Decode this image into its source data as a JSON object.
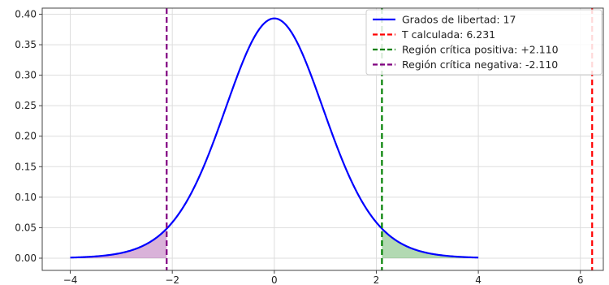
{
  "chart_data": {
    "type": "line",
    "title": "",
    "xlabel": "",
    "ylabel": "",
    "xlim": [
      -4.55,
      6.45
    ],
    "ylim": [
      -0.02,
      0.41
    ],
    "grid": true,
    "legend_position": "top-right",
    "x_ticks": [
      {
        "value": -4,
        "label": "−4"
      },
      {
        "value": -2,
        "label": "−2"
      },
      {
        "value": 0,
        "label": "0"
      },
      {
        "value": 2,
        "label": "2"
      },
      {
        "value": 4,
        "label": "4"
      },
      {
        "value": 6,
        "label": "6"
      }
    ],
    "y_ticks": [
      {
        "value": 0.0,
        "label": "0.00"
      },
      {
        "value": 0.05,
        "label": "0.05"
      },
      {
        "value": 0.1,
        "label": "0.10"
      },
      {
        "value": 0.15,
        "label": "0.15"
      },
      {
        "value": 0.2,
        "label": "0.20"
      },
      {
        "value": 0.25,
        "label": "0.25"
      },
      {
        "value": 0.3,
        "label": "0.30"
      },
      {
        "value": 0.35,
        "label": "0.35"
      },
      {
        "value": 0.4,
        "label": "0.40"
      }
    ],
    "series": [
      {
        "name": "Grados de libertad: 17",
        "kind": "curve",
        "color": "#0000ff",
        "degrees_of_freedom": 17,
        "x_range": [
          -4,
          4
        ],
        "x": [
          -4,
          -3.5,
          -3,
          -2.5,
          -2.11,
          -2,
          -1.5,
          -1,
          -0.5,
          0,
          0.5,
          1,
          1.5,
          2,
          2.11,
          2.5,
          3,
          3.5,
          4
        ],
        "y": [
          0.0016,
          0.0039,
          0.0091,
          0.0207,
          0.0465,
          0.0538,
          0.129,
          0.2365,
          0.3446,
          0.392,
          0.3446,
          0.2365,
          0.129,
          0.0538,
          0.0465,
          0.0207,
          0.0091,
          0.0039,
          0.0016
        ]
      },
      {
        "name": "T calculada: 6.231",
        "kind": "vline",
        "x": 6.231,
        "color": "#ff0000",
        "style": "dashed"
      },
      {
        "name": "Región crítica positiva: +2.110",
        "kind": "vline",
        "x": 2.11,
        "color": "#008000",
        "style": "dashed"
      },
      {
        "name": "Región crítica negativa: -2.110",
        "kind": "vline",
        "x": -2.11,
        "color": "#800080",
        "style": "dashed"
      }
    ],
    "shaded_regions": [
      {
        "from": -4,
        "to": -2.11,
        "color": "#800080",
        "opacity": 0.3
      },
      {
        "from": 2.11,
        "to": 4,
        "color": "#008000",
        "opacity": 0.3
      }
    ]
  }
}
